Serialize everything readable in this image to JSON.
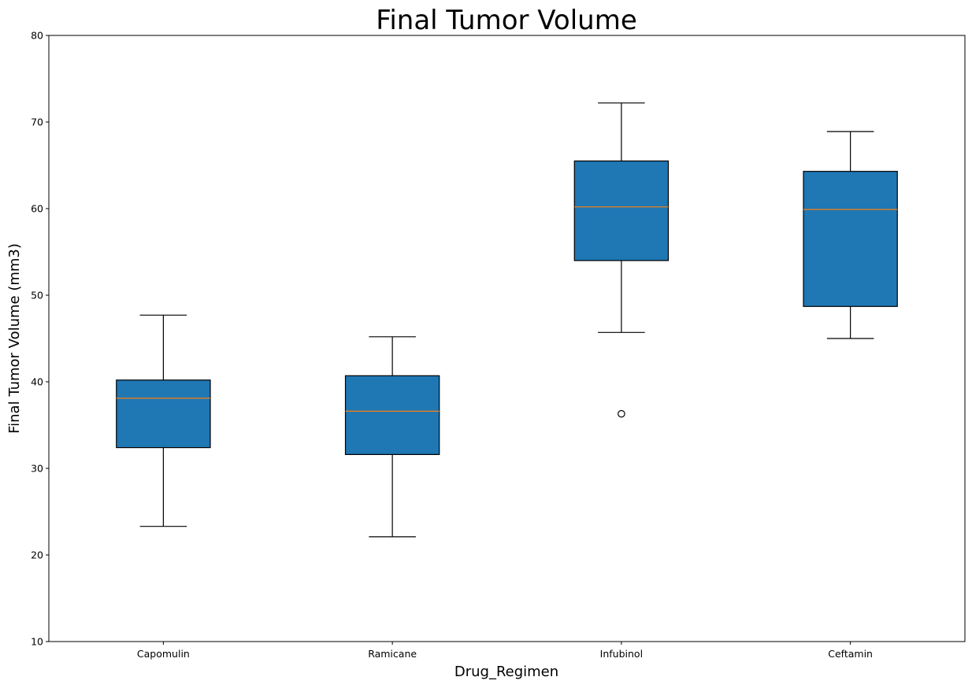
{
  "chart_data": {
    "type": "boxplot",
    "title": "Final Tumor Volume",
    "xlabel": "Drug_Regimen",
    "ylabel": "Final Tumor Volume (mm3)",
    "ylim": [
      10,
      80
    ],
    "yticks": [
      10,
      20,
      30,
      40,
      50,
      60,
      70,
      80
    ],
    "grid": false,
    "categories": [
      "Capomulin",
      "Ramicane",
      "Infubinol",
      "Ceftamin"
    ],
    "boxes": [
      {
        "category": "Capomulin",
        "whisker_low": 23.3,
        "q1": 32.4,
        "median": 38.1,
        "q3": 40.2,
        "whisker_high": 47.7,
        "outliers": []
      },
      {
        "category": "Ramicane",
        "whisker_low": 22.1,
        "q1": 31.6,
        "median": 36.6,
        "q3": 40.7,
        "whisker_high": 45.2,
        "outliers": []
      },
      {
        "category": "Infubinol",
        "whisker_low": 45.7,
        "q1": 54.0,
        "median": 60.2,
        "q3": 65.5,
        "whisker_high": 72.2,
        "outliers": [
          36.3
        ]
      },
      {
        "category": "Ceftamin",
        "whisker_low": 45.0,
        "q1": 48.7,
        "median": 59.9,
        "q3": 64.3,
        "whisker_high": 68.9,
        "outliers": []
      }
    ],
    "colors": {
      "box_fill": "#1f77b4",
      "box_edge": "#000000",
      "median": "#ff7f0e",
      "whisker": "#000000"
    }
  }
}
